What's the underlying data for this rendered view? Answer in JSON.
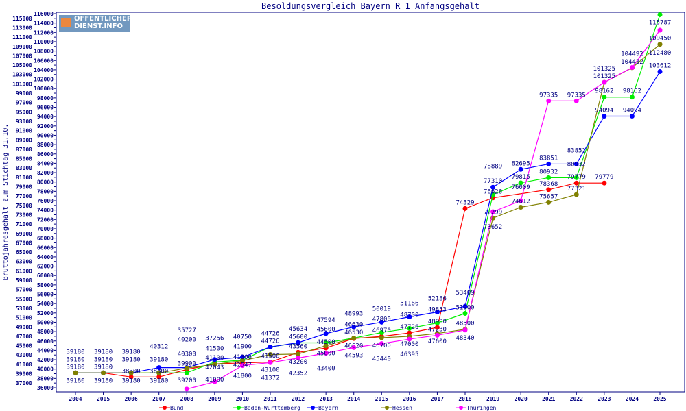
{
  "chart_data": {
    "type": "line",
    "title": "Besoldungsvergleich Bayern R 1 Anfangsgehalt",
    "ylabel": "Bruttojahresgehalt zum Stichtag 31.10.",
    "xlabel": "",
    "ylim": [
      36000,
      116000
    ],
    "ystep": 1000,
    "grid": false,
    "legend_position": "bottom",
    "logo_text": [
      "ÖFFENTLICHER",
      "DIENST.INFO"
    ],
    "x": [
      2004,
      2005,
      2006,
      2007,
      2008,
      2009,
      2010,
      2011,
      2012,
      2013,
      2014,
      2015,
      2016,
      2017,
      2018,
      2019,
      2020,
      2021,
      2022,
      2023,
      2024,
      2025
    ],
    "series": [
      {
        "name": "Bund",
        "color": "#ff0000",
        "values": [
          39180,
          39180,
          38300,
          38300,
          39900,
          41100,
          41300,
          41500,
          43560,
          44500,
          46530,
          46970,
          47726,
          48900,
          74329,
          76626,
          null,
          78368,
          79779,
          79779,
          null,
          null
        ]
      },
      {
        "name": "Baden-Württemberg",
        "color": "#00ee00",
        "values": [
          39180,
          39180,
          39180,
          39180,
          39200,
          41500,
          41900,
          44726,
          45600,
          45600,
          46630,
          47800,
          48700,
          49853,
          51900,
          77310,
          79815,
          80932,
          80932,
          98162,
          98162,
          115787
        ]
      },
      {
        "name": "Bayern",
        "color": "#0000ff",
        "values": [
          39180,
          39180,
          39180,
          40312,
          40300,
          42043,
          42547,
          44726,
          45634,
          47594,
          48993,
          50019,
          51166,
          52186,
          53409,
          78889,
          82695,
          83851,
          83851,
          94094,
          94094,
          103612
        ]
      },
      {
        "name": "Hessen",
        "color": "#808000",
        "values": [
          39180,
          39180,
          39180,
          39180,
          40200,
          41000,
          41800,
          43100,
          43200,
          45000,
          46620,
          46700,
          47000,
          47600,
          48500,
          72299,
          74612,
          75657,
          77321,
          101325,
          104432,
          109450
        ]
      },
      {
        "name": "Thüringen",
        "color": "#ff00ff",
        "values": [
          null,
          null,
          null,
          null,
          35727,
          37256,
          40750,
          41372,
          42352,
          43400,
          44593,
          45440,
          46395,
          47230,
          48340,
          73652,
          76009,
          97335,
          97335,
          101325,
          104492,
          112480
        ]
      }
    ]
  }
}
